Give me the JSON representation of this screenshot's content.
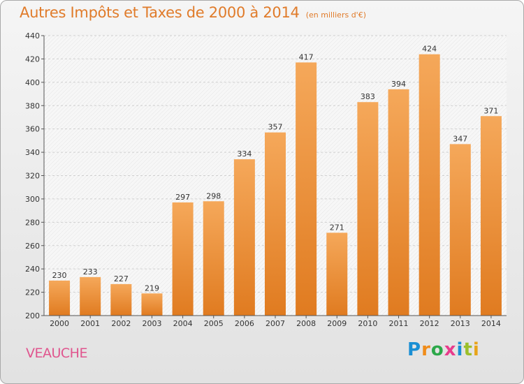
{
  "title": "Autres Impôts et Taxes de 2000 à 2014",
  "unit_label": "(en milliers d'€)",
  "commune": "VEAUCHE",
  "logo": {
    "letters": [
      "P",
      "r",
      "o",
      "x",
      "i",
      "t",
      "i"
    ],
    "colors": [
      "#1a8fd4",
      "#f08c1a",
      "#2ca84a",
      "#e83c8c",
      "#1a8fd4",
      "#9bbf2a",
      "#e8a41a"
    ]
  },
  "colors": {
    "bar_top": "#f5a85a",
    "bar_bottom": "#e07b20",
    "title": "#e07b2a",
    "commune": "#e0558e"
  },
  "chart_data": {
    "type": "bar",
    "title": "Autres Impôts et Taxes de 2000 à 2014",
    "subtitle": "(en milliers d'€)",
    "categories": [
      "2000",
      "2001",
      "2002",
      "2003",
      "2004",
      "2005",
      "2006",
      "2007",
      "2008",
      "2009",
      "2010",
      "2011",
      "2012",
      "2013",
      "2014"
    ],
    "values": [
      230,
      233,
      227,
      219,
      297,
      298,
      334,
      357,
      417,
      271,
      383,
      394,
      424,
      347,
      371
    ],
    "ylim": [
      200,
      440
    ],
    "yticks": [
      200,
      220,
      240,
      260,
      280,
      300,
      320,
      340,
      360,
      380,
      400,
      420,
      440
    ],
    "grid": true,
    "xlabel": "",
    "ylabel": ""
  }
}
